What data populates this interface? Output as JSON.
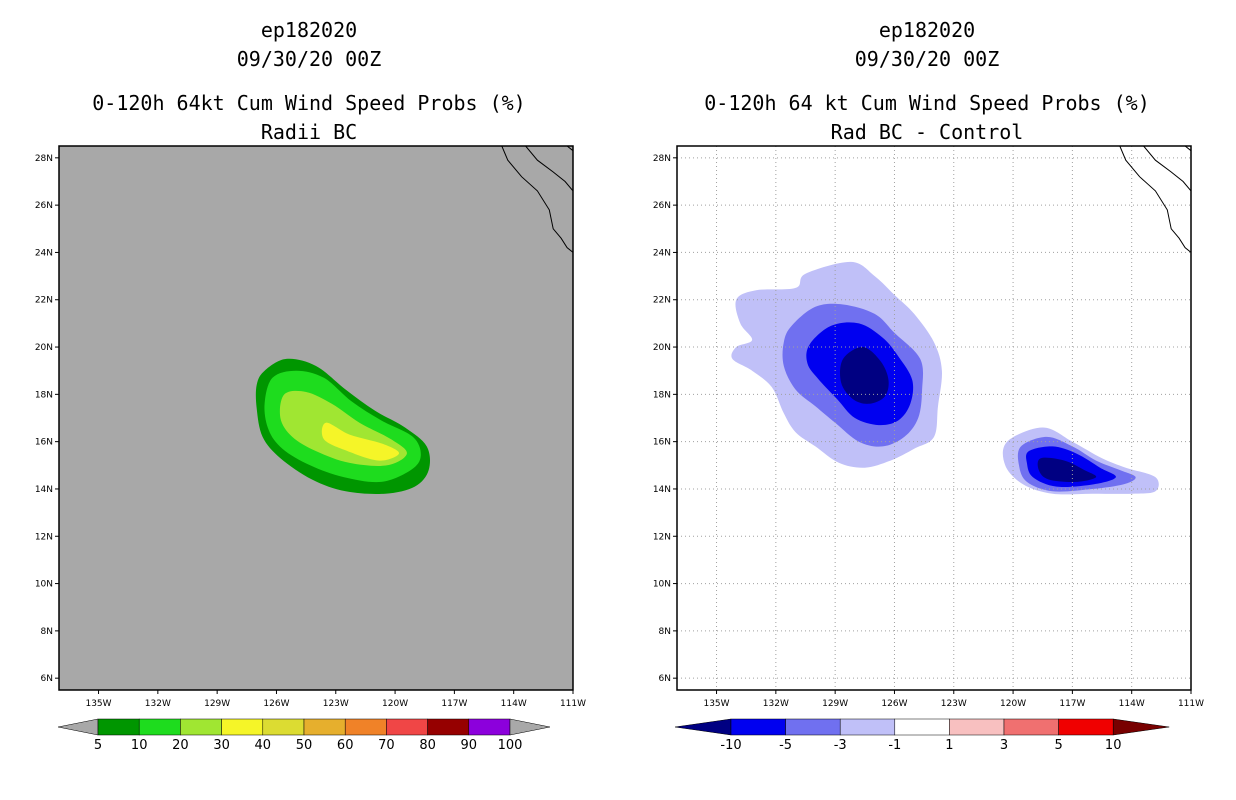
{
  "axes": {
    "lon_labels": [
      "135W",
      "132W",
      "129W",
      "126W",
      "123W",
      "120W",
      "117W",
      "114W",
      "111W"
    ],
    "lon_values": [
      -135,
      -132,
      -129,
      -126,
      -123,
      -120,
      -117,
      -114,
      -111
    ],
    "lat_labels": [
      "28N",
      "26N",
      "24N",
      "22N",
      "20N",
      "18N",
      "16N",
      "14N",
      "12N",
      "10N",
      "8N",
      "6N"
    ],
    "lat_values": [
      28,
      26,
      24,
      22,
      20,
      18,
      16,
      14,
      12,
      10,
      8,
      6
    ],
    "lon_range": [
      -137,
      -111
    ],
    "lat_range": [
      5.5,
      28.5
    ]
  },
  "panels": {
    "left": {
      "title_line1": "ep182020",
      "title_line2": "09/30/20 00Z",
      "title_line3": "0-120h 64kt Cum Wind Speed Probs (%)",
      "title_line4": "Radii BC",
      "background_color": "#a8a8a8",
      "grid": false,
      "colorbar_labels": [
        "5",
        "10",
        "20",
        "30",
        "40",
        "50",
        "60",
        "70",
        "80",
        "90",
        "100"
      ],
      "colorbar_colors": [
        "#009600",
        "#1edc1e",
        "#a0e632",
        "#f5f528",
        "#dcdc32",
        "#e6af2d",
        "#f08228",
        "#f04646",
        "#960000",
        "#8c00dc"
      ],
      "colorbar_end_color": "#a8a8a8",
      "contours": [
        {
          "level": "5-10",
          "color": "#009600",
          "points": [
            [
              -126.6,
              19.0
            ],
            [
              -125.5,
              19.5
            ],
            [
              -124.0,
              19.2
            ],
            [
              -122.5,
              18.2
            ],
            [
              -121.0,
              17.3
            ],
            [
              -119.5,
              16.6
            ],
            [
              -118.4,
              15.8
            ],
            [
              -118.3,
              14.8
            ],
            [
              -119.0,
              14.1
            ],
            [
              -120.5,
              13.8
            ],
            [
              -122.5,
              13.9
            ],
            [
              -124.2,
              14.4
            ],
            [
              -125.8,
              15.3
            ],
            [
              -126.7,
              16.2
            ],
            [
              -127.0,
              17.4
            ],
            [
              -127.0,
              18.4
            ]
          ]
        },
        {
          "level": "10-20",
          "color": "#1edc1e",
          "points": [
            [
              -126.2,
              18.7
            ],
            [
              -125.0,
              19.0
            ],
            [
              -123.6,
              18.7
            ],
            [
              -122.2,
              17.7
            ],
            [
              -120.7,
              16.9
            ],
            [
              -119.1,
              16.2
            ],
            [
              -118.7,
              15.4
            ],
            [
              -119.2,
              14.8
            ],
            [
              -120.7,
              14.3
            ],
            [
              -122.6,
              14.5
            ],
            [
              -124.3,
              15.0
            ],
            [
              -125.7,
              15.7
            ],
            [
              -126.4,
              16.5
            ],
            [
              -126.6,
              17.6
            ]
          ]
        },
        {
          "level": "20-30",
          "color": "#a0e632",
          "points": [
            [
              -125.6,
              18.0
            ],
            [
              -124.5,
              18.1
            ],
            [
              -123.2,
              17.6
            ],
            [
              -121.8,
              16.8
            ],
            [
              -120.2,
              16.1
            ],
            [
              -119.4,
              15.5
            ],
            [
              -120.4,
              15.0
            ],
            [
              -122.3,
              15.1
            ],
            [
              -124.0,
              15.6
            ],
            [
              -125.2,
              16.2
            ],
            [
              -125.8,
              17.0
            ]
          ]
        },
        {
          "level": "30-40",
          "color": "#f5f528",
          "points": [
            [
              -123.5,
              16.8
            ],
            [
              -122.3,
              16.3
            ],
            [
              -120.6,
              15.9
            ],
            [
              -119.8,
              15.5
            ],
            [
              -120.8,
              15.2
            ],
            [
              -122.4,
              15.6
            ],
            [
              -123.6,
              16.1
            ]
          ]
        }
      ]
    },
    "right": {
      "title_line1": "ep182020",
      "title_line2": "09/30/20 00Z",
      "title_line3": "0-120h 64 kt Cum Wind Speed Probs (%)",
      "title_line4": "Rad BC - Control",
      "background_color": "#ffffff",
      "grid": true,
      "colorbar_labels": [
        "-10",
        "-5",
        "-3",
        "-1",
        "1",
        "3",
        "5",
        "10"
      ],
      "colorbar_colors": [
        "#0000f0",
        "#7070f0",
        "#c0c0f8",
        "#ffffff",
        "#f8c0c0",
        "#f07070",
        "#f00000"
      ],
      "colorbar_end_left": "#000082",
      "colorbar_end_right": "#780000",
      "contours": [
        {
          "level": "-1 to -3",
          "color": "#c0c0f8",
          "points": [
            [
              -134.0,
              22.0
            ],
            [
              -133.0,
              22.4
            ],
            [
              -131.0,
              22.5
            ],
            [
              -130.5,
              23.1
            ],
            [
              -128.2,
              23.6
            ],
            [
              -127.0,
              23.0
            ],
            [
              -126.0,
              22.2
            ],
            [
              -125.0,
              21.4
            ],
            [
              -124.0,
              20.2
            ],
            [
              -123.6,
              19.0
            ],
            [
              -123.8,
              17.5
            ],
            [
              -124.0,
              16.2
            ],
            [
              -125.0,
              15.7
            ],
            [
              -126.2,
              15.2
            ],
            [
              -127.5,
              14.9
            ],
            [
              -128.8,
              15.1
            ],
            [
              -130.0,
              15.8
            ],
            [
              -131.0,
              16.4
            ],
            [
              -131.6,
              17.2
            ],
            [
              -132.2,
              18.3
            ],
            [
              -133.2,
              19.0
            ],
            [
              -134.2,
              19.5
            ],
            [
              -134.0,
              20.0
            ],
            [
              -133.2,
              20.3
            ],
            [
              -133.8,
              21.0
            ]
          ]
        },
        {
          "level": "-3 to -5",
          "color": "#7070f0",
          "points": [
            [
              -131.2,
              20.9
            ],
            [
              -130.0,
              21.7
            ],
            [
              -128.6,
              21.8
            ],
            [
              -127.0,
              21.4
            ],
            [
              -126.0,
              20.6
            ],
            [
              -124.7,
              19.5
            ],
            [
              -124.6,
              18.2
            ],
            [
              -124.8,
              17.0
            ],
            [
              -125.5,
              16.2
            ],
            [
              -126.6,
              15.8
            ],
            [
              -127.8,
              16.0
            ],
            [
              -129.0,
              16.8
            ],
            [
              -130.0,
              17.5
            ],
            [
              -131.0,
              18.2
            ],
            [
              -131.6,
              19.2
            ],
            [
              -131.6,
              20.2
            ]
          ]
        },
        {
          "level": "-5 to -10",
          "color": "#0000f0",
          "points": [
            [
              -130.3,
              20.1
            ],
            [
              -129.2,
              20.9
            ],
            [
              -127.8,
              21.0
            ],
            [
              -126.6,
              20.4
            ],
            [
              -125.8,
              19.6
            ],
            [
              -125.1,
              18.6
            ],
            [
              -125.2,
              17.6
            ],
            [
              -125.8,
              16.9
            ],
            [
              -126.8,
              16.7
            ],
            [
              -128.0,
              17.0
            ],
            [
              -128.9,
              17.8
            ],
            [
              -129.8,
              18.6
            ],
            [
              -130.4,
              19.3
            ]
          ]
        },
        {
          "level": "< -10",
          "color": "#000082",
          "points": [
            [
              -128.6,
              19.5
            ],
            [
              -127.6,
              20.0
            ],
            [
              -126.7,
              19.4
            ],
            [
              -126.3,
              18.6
            ],
            [
              -126.5,
              17.9
            ],
            [
              -127.3,
              17.6
            ],
            [
              -128.1,
              17.8
            ],
            [
              -128.7,
              18.5
            ]
          ]
        },
        {
          "level": "-1 to -3",
          "color": "#c0c0f8",
          "points": [
            [
              -120.3,
              16.0
            ],
            [
              -118.5,
              16.6
            ],
            [
              -117.0,
              16.0
            ],
            [
              -115.5,
              15.3
            ],
            [
              -114.3,
              14.9
            ],
            [
              -112.8,
              14.5
            ],
            [
              -112.8,
              13.9
            ],
            [
              -114.0,
              13.8
            ],
            [
              -116.0,
              13.8
            ],
            [
              -118.0,
              13.8
            ],
            [
              -119.5,
              14.2
            ],
            [
              -120.4,
              15.0
            ]
          ]
        },
        {
          "level": "-3 to -5",
          "color": "#7070f0",
          "points": [
            [
              -119.6,
              15.8
            ],
            [
              -118.3,
              16.2
            ],
            [
              -117.0,
              15.8
            ],
            [
              -115.8,
              15.2
            ],
            [
              -114.6,
              14.8
            ],
            [
              -113.8,
              14.5
            ],
            [
              -114.4,
              14.2
            ],
            [
              -116.0,
              14.0
            ],
            [
              -118.0,
              13.9
            ],
            [
              -119.3,
              14.3
            ],
            [
              -119.7,
              15.0
            ]
          ]
        },
        {
          "level": "-5 to -10",
          "color": "#0000f0",
          "points": [
            [
              -119.2,
              15.6
            ],
            [
              -118.0,
              15.8
            ],
            [
              -116.8,
              15.5
            ],
            [
              -115.6,
              14.9
            ],
            [
              -114.8,
              14.5
            ],
            [
              -115.9,
              14.2
            ],
            [
              -117.8,
              14.1
            ],
            [
              -119.0,
              14.5
            ],
            [
              -119.3,
              15.1
            ]
          ]
        },
        {
          "level": "< -10",
          "color": "#000082",
          "points": [
            [
              -118.6,
              15.3
            ],
            [
              -117.4,
              15.2
            ],
            [
              -116.4,
              14.8
            ],
            [
              -115.8,
              14.5
            ],
            [
              -116.8,
              14.3
            ],
            [
              -118.2,
              14.4
            ],
            [
              -118.7,
              14.8
            ]
          ]
        }
      ]
    }
  },
  "coastline": [
    [
      -114.6,
      28.5
    ],
    [
      -114.3,
      27.9
    ],
    [
      -113.6,
      27.2
    ],
    [
      -112.8,
      26.6
    ],
    [
      -112.2,
      25.8
    ],
    [
      -112.0,
      25.0
    ],
    [
      -111.6,
      24.6
    ],
    [
      -111.3,
      24.2
    ],
    [
      -111.0,
      24.0
    ]
  ],
  "coastline_mainland": [
    [
      -113.4,
      28.5
    ],
    [
      -112.8,
      27.9
    ],
    [
      -112.0,
      27.4
    ],
    [
      -111.4,
      27.0
    ],
    [
      -111.0,
      26.6
    ]
  ],
  "coastline_north": [
    [
      -111.0,
      28.3
    ],
    [
      -111.3,
      28.5
    ]
  ]
}
